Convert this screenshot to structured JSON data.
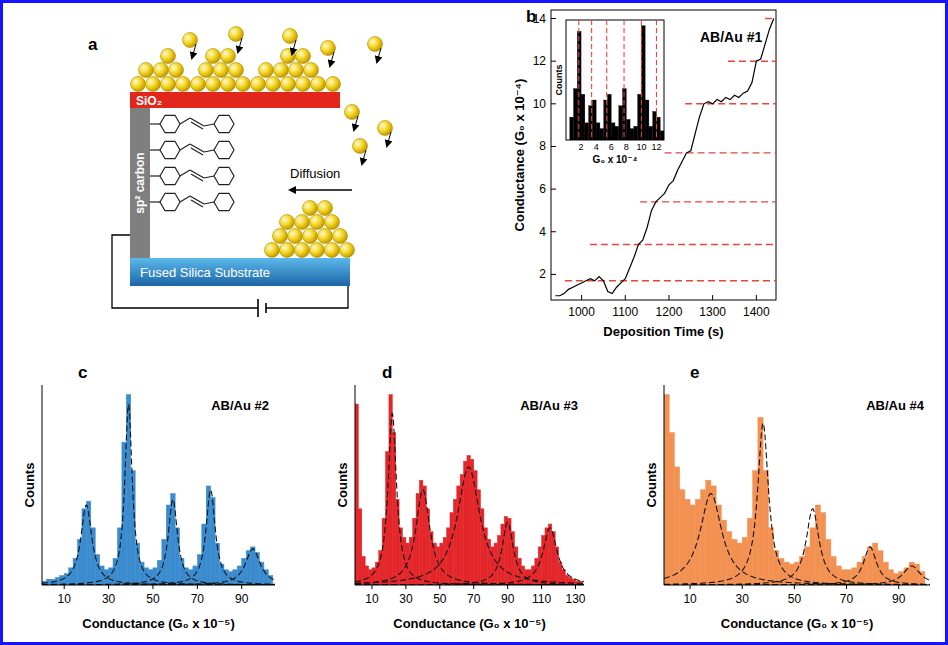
{
  "diagram": {
    "panel": "a",
    "labels": {
      "oxide": "SiO₂",
      "electrode": "sp² carbon",
      "diffusion": "Diffusion",
      "substrate": "Fused Silica Substrate"
    }
  },
  "chart_data": [
    {
      "panel": "b",
      "type": "line",
      "title": "AB/Au #1",
      "xlabel": "Deposition Time (s)",
      "ylabel": "Conductance (G₀ x 10⁻⁴)",
      "x": [
        940,
        950,
        960,
        970,
        980,
        990,
        1000,
        1010,
        1020,
        1030,
        1040,
        1050,
        1060,
        1070,
        1080,
        1090,
        1100,
        1110,
        1120,
        1130,
        1140,
        1150,
        1160,
        1170,
        1180,
        1190,
        1200,
        1210,
        1220,
        1230,
        1240,
        1250,
        1260,
        1270,
        1280,
        1290,
        1300,
        1310,
        1320,
        1330,
        1340,
        1350,
        1360,
        1370,
        1380,
        1390,
        1400,
        1410,
        1420,
        1430,
        1440
      ],
      "values": [
        1.0,
        1.0,
        1.1,
        1.3,
        1.4,
        1.5,
        1.6,
        1.7,
        1.8,
        1.7,
        1.9,
        1.7,
        1.2,
        1.1,
        1.4,
        1.6,
        1.8,
        2.3,
        2.8,
        3.4,
        3.6,
        4.2,
        5.0,
        5.4,
        5.6,
        5.8,
        6.2,
        6.4,
        6.9,
        7.3,
        7.7,
        7.8,
        8.6,
        9.4,
        10.0,
        10.1,
        10.0,
        10.2,
        10.1,
        10.3,
        10.2,
        10.4,
        10.3,
        10.5,
        10.6,
        11.0,
        12.0,
        12.1,
        12.8,
        13.5,
        14.0
      ],
      "color": "#000000",
      "xlim": [
        930,
        1445
      ],
      "xticks": [
        1000,
        1100,
        1200,
        1300,
        1400
      ],
      "ylim": [
        0.8,
        14.4
      ],
      "yticks": [
        2,
        4,
        6,
        8,
        10,
        12,
        14
      ],
      "levels": [
        1.7,
        3.4,
        5.4,
        7.7,
        10.0,
        12.0,
        14.0
      ],
      "level_starts": [
        962,
        1019,
        1134,
        1190,
        1237,
        1335,
        1420
      ],
      "inset": {
        "type": "histogram",
        "xlabel": "G₀ x 10⁻⁴",
        "ylabel": "Counts",
        "bins": [
          0,
          0.5,
          1,
          1.5,
          2,
          2.5,
          3,
          3.5,
          4,
          4.5,
          5,
          5.5,
          6,
          6.5,
          7,
          7.5,
          8,
          8.5,
          9,
          9.5,
          10,
          10.5,
          11,
          11.5,
          12,
          12.5,
          13
        ],
        "counts": [
          0,
          20,
          45,
          95,
          40,
          15,
          30,
          35,
          15,
          10,
          35,
          40,
          15,
          12,
          30,
          45,
          18,
          10,
          12,
          40,
          100,
          35,
          12,
          25,
          20,
          8
        ],
        "color": "#000000",
        "xlim": [
          0,
          13
        ],
        "xticks": [
          2,
          4,
          6,
          8,
          10,
          12
        ],
        "ylim": [
          0,
          105
        ],
        "levels": [
          1.7,
          3.4,
          5.4,
          7.7,
          10.0,
          12.0
        ],
        "tick_labels": "x"
      }
    },
    {
      "panel": "c",
      "type": "histogram",
      "title": "AB/Au #2",
      "xlabel": "Conductance (G₀ x 10⁻⁵)",
      "ylabel": "Counts",
      "color": "#3a8ccf",
      "tick_labels": "x",
      "bins": [
        0,
        2,
        4,
        6,
        8,
        10,
        12,
        14,
        16,
        18,
        20,
        22,
        24,
        26,
        28,
        30,
        32,
        34,
        36,
        38,
        40,
        42,
        44,
        46,
        48,
        50,
        52,
        54,
        56,
        58,
        60,
        62,
        64,
        66,
        68,
        70,
        72,
        74,
        76,
        78,
        80,
        82,
        84,
        86,
        88,
        90,
        92,
        94,
        96,
        98,
        100,
        102,
        104
      ],
      "counts": [
        2,
        3,
        3,
        4,
        5,
        6,
        9,
        14,
        24,
        40,
        44,
        30,
        16,
        10,
        8,
        9,
        14,
        30,
        75,
        100,
        60,
        22,
        12,
        9,
        8,
        9,
        13,
        24,
        42,
        48,
        30,
        14,
        9,
        8,
        10,
        16,
        32,
        52,
        46,
        22,
        11,
        8,
        7,
        8,
        10,
        14,
        18,
        20,
        17,
        12,
        8,
        5
      ],
      "fits": [
        {
          "center": 20,
          "width": 3,
          "height": 42
        },
        {
          "center": 39,
          "width": 2,
          "height": 95
        },
        {
          "center": 59,
          "width": 2.5,
          "height": 45
        },
        {
          "center": 76,
          "width": 2.5,
          "height": 50
        },
        {
          "center": 95,
          "width": 4,
          "height": 19
        }
      ],
      "xlim": [
        0,
        105
      ],
      "xticks": [
        10,
        30,
        50,
        70,
        90
      ],
      "ylim": [
        0,
        105
      ]
    },
    {
      "panel": "d",
      "type": "histogram",
      "title": "AB/Au #3",
      "xlabel": "Conductance (G₀ x 10⁻⁵)",
      "ylabel": "Counts",
      "color": "#e3262a",
      "tick_labels": "x",
      "bins": [
        0,
        2,
        4,
        6,
        8,
        10,
        12,
        14,
        16,
        18,
        20,
        22,
        24,
        26,
        28,
        30,
        32,
        34,
        36,
        38,
        40,
        42,
        44,
        46,
        48,
        50,
        52,
        54,
        56,
        58,
        60,
        62,
        64,
        66,
        68,
        70,
        72,
        74,
        76,
        78,
        80,
        82,
        84,
        86,
        88,
        90,
        92,
        94,
        96,
        98,
        100,
        102,
        104,
        106,
        108,
        110,
        112,
        114,
        116,
        118,
        120,
        122,
        124,
        126,
        128,
        130,
        132,
        134
      ],
      "counts": [
        95,
        40,
        15,
        10,
        8,
        9,
        12,
        18,
        35,
        70,
        100,
        80,
        45,
        30,
        25,
        22,
        25,
        35,
        48,
        55,
        52,
        40,
        28,
        22,
        20,
        22,
        25,
        30,
        38,
        45,
        52,
        58,
        65,
        68,
        66,
        60,
        50,
        40,
        30,
        24,
        20,
        22,
        26,
        32,
        36,
        35,
        28,
        20,
        14,
        10,
        8,
        8,
        10,
        14,
        20,
        26,
        30,
        32,
        28,
        20,
        12,
        8,
        5,
        4,
        3,
        2,
        2
      ],
      "fits": [
        {
          "center": 22,
          "width": 3,
          "height": 90
        },
        {
          "center": 40,
          "width": 5,
          "height": 50
        },
        {
          "center": 67,
          "width": 8,
          "height": 62
        },
        {
          "center": 90,
          "width": 4,
          "height": 33
        },
        {
          "center": 115,
          "width": 5,
          "height": 30
        }
      ],
      "xlim": [
        0,
        135
      ],
      "xticks": [
        10,
        30,
        50,
        70,
        90,
        110,
        130
      ],
      "ylim": [
        0,
        105
      ]
    },
    {
      "panel": "e",
      "type": "histogram",
      "title": "AB/Au #4",
      "xlabel": "Conductance (G₀ x 10⁻⁵)",
      "ylabel": "Counts",
      "color": "#f39152",
      "tick_labels": "x",
      "bins": [
        0,
        2,
        4,
        6,
        8,
        10,
        12,
        14,
        16,
        18,
        20,
        22,
        24,
        26,
        28,
        30,
        32,
        34,
        36,
        38,
        40,
        42,
        44,
        46,
        48,
        50,
        52,
        54,
        56,
        58,
        60,
        62,
        64,
        66,
        68,
        70,
        72,
        74,
        76,
        78,
        80,
        82,
        84,
        86,
        88,
        90,
        92,
        94,
        96,
        98,
        100
      ],
      "counts": [
        100,
        80,
        62,
        50,
        45,
        42,
        45,
        50,
        55,
        52,
        42,
        34,
        28,
        24,
        22,
        25,
        35,
        60,
        88,
        60,
        30,
        18,
        14,
        12,
        11,
        12,
        15,
        20,
        30,
        42,
        38,
        24,
        15,
        10,
        8,
        8,
        9,
        12,
        15,
        20,
        22,
        18,
        12,
        8,
        6,
        7,
        9,
        12,
        11,
        7
      ],
      "fits": [
        {
          "center": 18,
          "width": 5,
          "height": 48
        },
        {
          "center": 38,
          "width": 2.5,
          "height": 85
        },
        {
          "center": 57,
          "width": 3,
          "height": 40
        },
        {
          "center": 79,
          "width": 3,
          "height": 20
        },
        {
          "center": 95,
          "width": 4,
          "height": 10
        }
      ],
      "xlim": [
        0,
        102
      ],
      "xticks": [
        10,
        30,
        50,
        70,
        90
      ],
      "ylim": [
        0,
        105
      ]
    }
  ]
}
